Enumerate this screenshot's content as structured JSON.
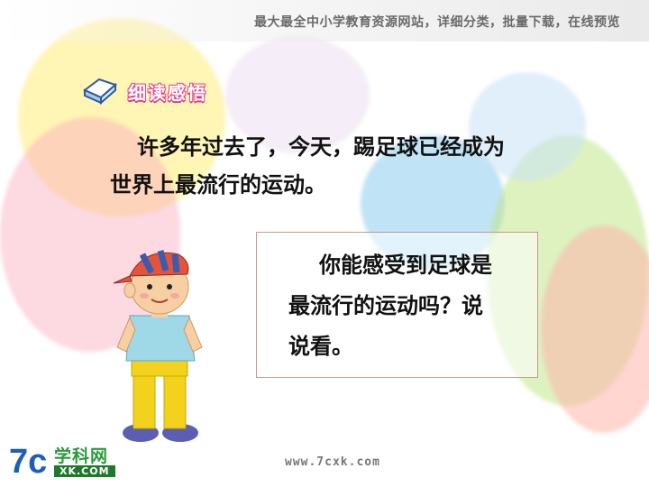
{
  "header": {
    "text": "最大最全中小学教育资源网站，详细分类，批量下载，在线预览"
  },
  "section": {
    "label": "细读感悟",
    "icon": "book-icon"
  },
  "paragraph": {
    "line1": "许多年过去了，今天，踢足球已经成为",
    "line2": "世界上最流行的运动。"
  },
  "question": {
    "line1": "你能感受到足球是",
    "line2": "最流行的运动吗？说",
    "line3": "说看。"
  },
  "footer": {
    "url": "www.7cxk.com"
  },
  "logo": {
    "mark": "7c",
    "site_name": "学科网",
    "domain": "XK.COM"
  },
  "colors": {
    "label_pink": "#e8458a",
    "box_border": "#c99a8a",
    "logo_green": "#2b9a3c"
  }
}
